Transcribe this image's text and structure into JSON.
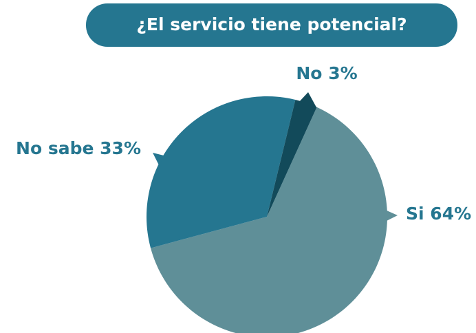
{
  "chart_data": {
    "type": "pie",
    "title": "¿El servicio tiene potencial?",
    "categories": [
      "Si",
      "No sabe",
      "No"
    ],
    "values": [
      64,
      33,
      3
    ],
    "value_labels": [
      "64%",
      "33%",
      "3%"
    ],
    "colors": [
      "#5f8f98",
      "#257690",
      "#124a5a"
    ]
  }
}
